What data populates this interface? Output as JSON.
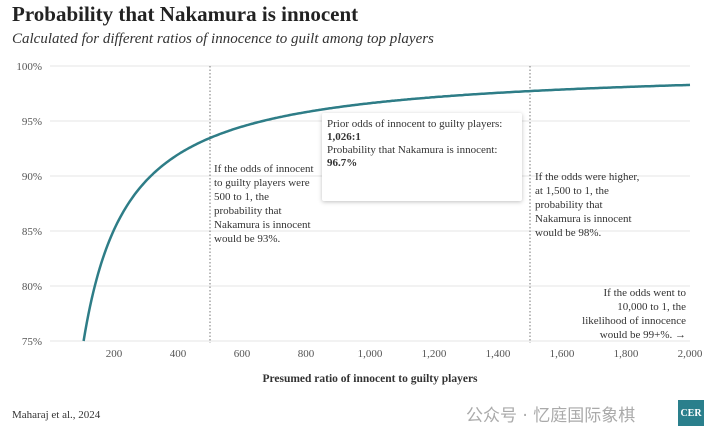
{
  "chart_data": {
    "type": "line",
    "title": "Probability that Nakamura is innocent",
    "subtitle": "Calculated for different ratios of innocence to guilt among top players",
    "xlabel": "Presumed ratio of innocent to guilty players",
    "ylabel": "",
    "xlim": [
      0,
      2000
    ],
    "ylim": [
      75,
      100
    ],
    "grid": true,
    "x_ticks": [
      "200",
      "400",
      "600",
      "800",
      "1,000",
      "1,200",
      "1,400",
      "1,600",
      "1,800",
      "2,000"
    ],
    "y_ticks": [
      "75%",
      "80%",
      "85%",
      "90%",
      "95%",
      "100%"
    ],
    "line_color": "#2e7d87",
    "series": [
      {
        "x": [
          105,
          150,
          200,
          300,
          400,
          500,
          600,
          800,
          1026,
          1200,
          1500,
          1800,
          2000
        ],
        "values": [
          75.0,
          81.1,
          85.1,
          89.6,
          92.0,
          93.5,
          94.5,
          95.8,
          96.7,
          97.2,
          97.7,
          98.1,
          98.3
        ]
      }
    ],
    "reference_lines": [
      500,
      1500
    ],
    "annotations": [
      "If the odds of innocent to guilty players were 500 to 1, the probability that Nakamura is innocent would be 93%.",
      "If the odds were higher, at 1,500 to 1, the probability that Nakamura is innocent would be 98%.",
      "If the odds went to 10,000 to 1, the likelihood of innocence would be 99+%. →"
    ],
    "tooltip": {
      "label1": "Prior odds of innocent to guilty players:",
      "value1": "1,026:1",
      "label2": "Probability that Nakamura is innocent:",
      "value2": "96.7%"
    }
  },
  "source": "Maharaj et al., 2024",
  "watermark": "公众号 · 忆庭国际象棋",
  "logo": "CER"
}
